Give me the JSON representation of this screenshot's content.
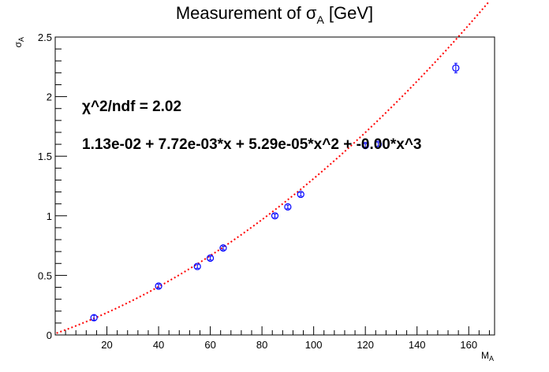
{
  "chart_data": {
    "type": "scatter",
    "title_main": "Measurement of ",
    "title_symbol": "σ",
    "title_sub": "A",
    "title_unit": " [GeV]",
    "xlabel_main": "M",
    "xlabel_sub": "A",
    "ylabel_main": "σ",
    "ylabel_sub": "A",
    "xlim": [
      0,
      170
    ],
    "ylim": [
      0,
      2.5
    ],
    "x_ticks": [
      20,
      40,
      60,
      80,
      100,
      120,
      140,
      160
    ],
    "y_ticks": [
      0,
      0.5,
      1,
      1.5,
      2,
      2.5
    ],
    "x_tick_labels": [
      "20",
      "40",
      "60",
      "80",
      "100",
      "120",
      "140",
      "160"
    ],
    "y_tick_labels": [
      "0",
      "0.5",
      "1",
      "1.5",
      "2",
      "2.5"
    ],
    "series": [
      {
        "marker": "open-circle",
        "color": "#0000ff",
        "x": [
          15,
          40,
          55,
          60,
          65,
          85,
          90,
          95,
          120,
          125,
          155
        ],
        "y": [
          0.145,
          0.41,
          0.575,
          0.645,
          0.73,
          1.0,
          1.075,
          1.18,
          1.59,
          1.6,
          2.24
        ],
        "err": [
          0.02,
          0.015,
          0.015,
          0.015,
          0.015,
          0.015,
          0.015,
          0.015,
          0.015,
          0.015,
          0.04
        ]
      }
    ],
    "fit": {
      "color": "#ff0000",
      "style": "dotted",
      "coefficients": [
        0.0113,
        0.00772,
        5.29e-05,
        0.0
      ],
      "x_range": [
        0.5,
        168
      ]
    },
    "annotations": {
      "chi2": "χ^2/ndf = 2.02",
      "formula": "1.13e-02 + 7.72e-03*x + 5.29e-05*x^2 + -0.00*x^3"
    },
    "grid": false
  }
}
